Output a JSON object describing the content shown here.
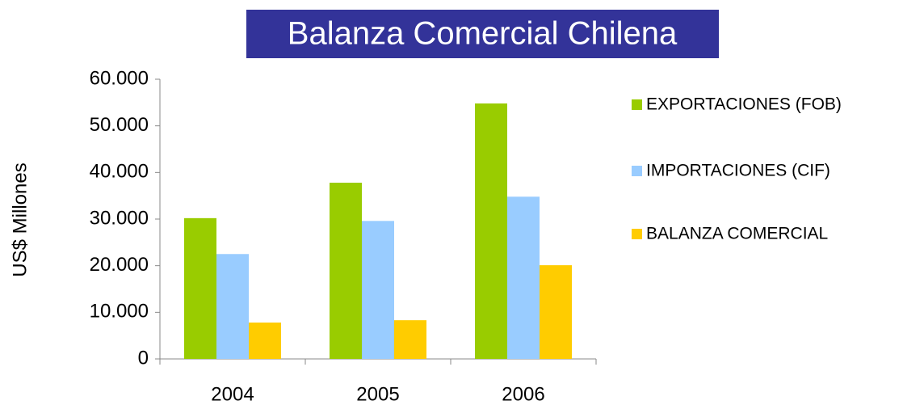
{
  "chart_data": {
    "type": "bar",
    "title": "Balanza Comercial Chilena",
    "y_label": "US$ Millones",
    "categories": [
      "2004",
      "2005",
      "2006"
    ],
    "series": [
      {
        "name": "EXPORTACIONES (FOB)",
        "color": "#99cc00",
        "values": [
          30200,
          37800,
          54800
        ]
      },
      {
        "name": "IMPORTACIONES (CIF)",
        "color": "#99ccff",
        "values": [
          22500,
          29600,
          34800
        ]
      },
      {
        "name": "BALANZA COMERCIAL",
        "color": "#ffcc00",
        "values": [
          7800,
          8300,
          20100
        ]
      }
    ],
    "ylim": [
      0,
      60000
    ],
    "yticks": [
      0,
      {
        "value": 10000,
        "label": "10.000"
      },
      {
        "value": 20000,
        "label": "20.000"
      },
      {
        "value": 30000,
        "label": "30.000"
      },
      {
        "value": 40000,
        "label": "40.000"
      },
      {
        "value": 50000,
        "label": "50.000"
      },
      {
        "value": 60000,
        "label": "60.000"
      }
    ],
    "legend": "right"
  }
}
